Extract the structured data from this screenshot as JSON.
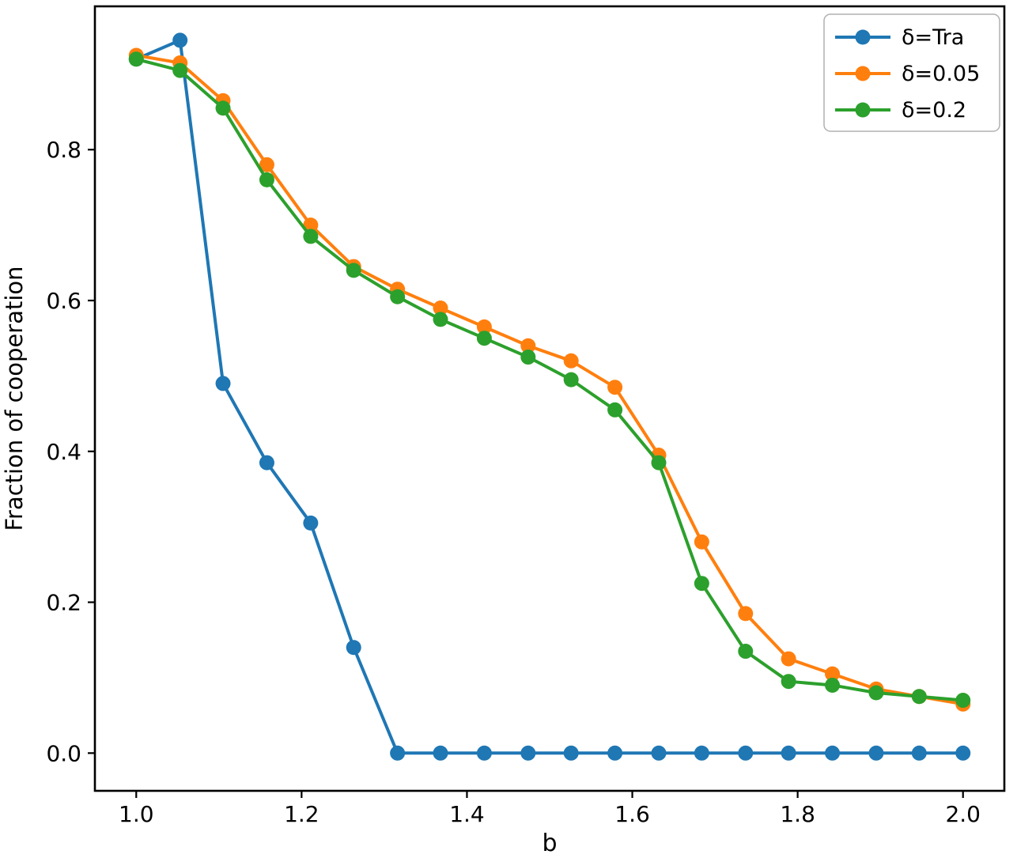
{
  "chart_data": {
    "type": "line",
    "title": "",
    "xlabel": "b",
    "ylabel": "Fraction of cooperation",
    "xlim": [
      0.95,
      2.05
    ],
    "ylim": [
      -0.05,
      0.99
    ],
    "x_ticks": [
      1.0,
      1.2,
      1.4,
      1.6,
      1.8,
      2.0
    ],
    "y_ticks": [
      0.0,
      0.2,
      0.4,
      0.6,
      0.8
    ],
    "grid": false,
    "legend_position": "upper right",
    "marker": "circle",
    "x": [
      1.0,
      1.053,
      1.105,
      1.158,
      1.211,
      1.263,
      1.316,
      1.368,
      1.421,
      1.474,
      1.526,
      1.579,
      1.632,
      1.684,
      1.737,
      1.789,
      1.842,
      1.895,
      1.947,
      2.0
    ],
    "series": [
      {
        "name": "δ=Tra",
        "color": "#1f77b4",
        "values": [
          0.92,
          0.945,
          0.49,
          0.385,
          0.305,
          0.14,
          0.0,
          0.0,
          0.0,
          0.0,
          0.0,
          0.0,
          0.0,
          0.0,
          0.0,
          0.0,
          0.0,
          0.0,
          0.0,
          0.0
        ]
      },
      {
        "name": "δ=0.05",
        "color": "#ff7f0e",
        "values": [
          0.925,
          0.915,
          0.865,
          0.78,
          0.7,
          0.645,
          0.615,
          0.59,
          0.565,
          0.54,
          0.52,
          0.485,
          0.395,
          0.28,
          0.185,
          0.125,
          0.105,
          0.085,
          0.075,
          0.065
        ]
      },
      {
        "name": "δ=0.2",
        "color": "#2ca02c",
        "values": [
          0.92,
          0.905,
          0.855,
          0.76,
          0.685,
          0.64,
          0.605,
          0.575,
          0.55,
          0.525,
          0.495,
          0.455,
          0.385,
          0.225,
          0.135,
          0.095,
          0.09,
          0.08,
          0.075,
          0.07
        ]
      }
    ]
  }
}
